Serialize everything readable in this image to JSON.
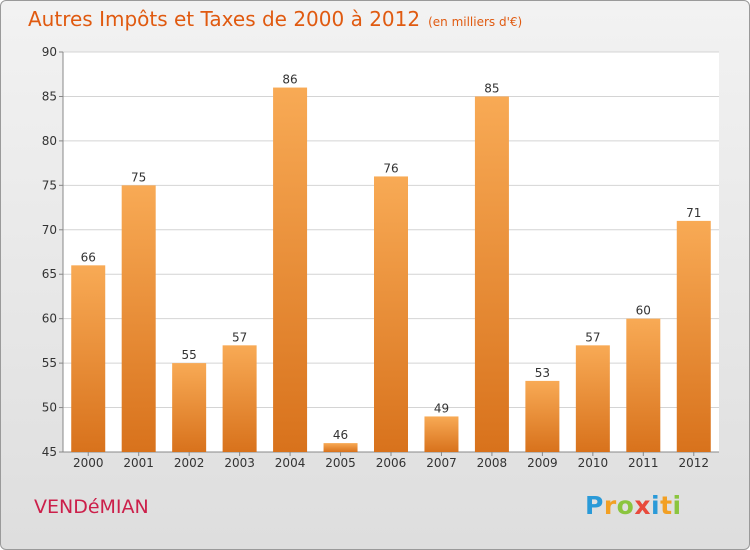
{
  "header": {
    "title": "Autres Impôts et Taxes de 2000 à 2012",
    "unit": "(en milliers d'€)"
  },
  "commune": "VENDéMIAN",
  "logo": {
    "letters": [
      {
        "ch": "P",
        "color": "#2a9ad8"
      },
      {
        "ch": "r",
        "color": "#f2a024"
      },
      {
        "ch": "o",
        "color": "#8bc53f"
      },
      {
        "ch": "x",
        "color": "#e84a3c"
      },
      {
        "ch": "i",
        "color": "#2a9ad8"
      },
      {
        "ch": "t",
        "color": "#f2a024"
      },
      {
        "ch": "i",
        "color": "#8bc53f"
      }
    ]
  },
  "colors": {
    "bar_light": "#f8aa55",
    "bar_dark": "#d8721c",
    "grid": "#d4d4d4",
    "axis_text": "#333333",
    "title": "#e05a10"
  },
  "chart_data": {
    "type": "bar",
    "categories": [
      "2000",
      "2001",
      "2002",
      "2003",
      "2004",
      "2005",
      "2006",
      "2007",
      "2008",
      "2009",
      "2010",
      "2011",
      "2012"
    ],
    "values": [
      66,
      75,
      55,
      57,
      86,
      46,
      76,
      49,
      85,
      53,
      57,
      60,
      71
    ],
    "value_labels": [
      "66",
      "75",
      "55",
      "57",
      "86",
      "46",
      "76",
      "49",
      "85",
      "53",
      "57",
      "60",
      "71"
    ],
    "ylim": [
      45,
      90
    ],
    "yticks": [
      45,
      50,
      55,
      60,
      65,
      70,
      75,
      80,
      85,
      90
    ],
    "ytick_labels": [
      "45",
      "50",
      "55",
      "60",
      "65",
      "70",
      "75",
      "80",
      "85",
      "90"
    ],
    "grid": true,
    "legend": "none"
  }
}
